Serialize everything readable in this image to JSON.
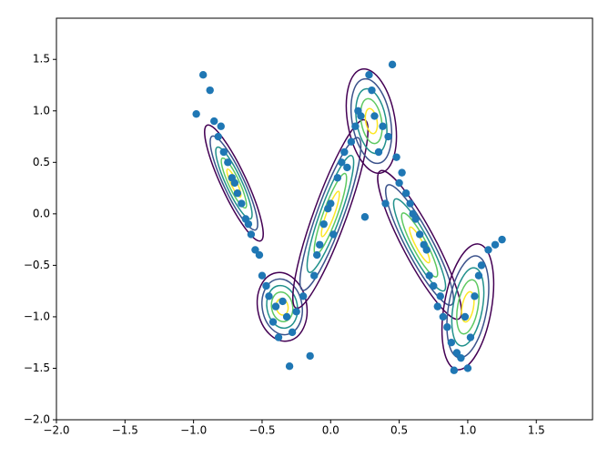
{
  "chart_data": {
    "type": "scatter",
    "color": "#1f77b4",
    "x": [
      -0.98,
      -0.93,
      -0.88,
      -0.85,
      -0.82,
      -0.8,
      -0.78,
      -0.75,
      -0.72,
      -0.7,
      -0.68,
      -0.65,
      -0.62,
      -0.6,
      -0.58,
      -0.55,
      -0.52,
      -0.5,
      -0.47,
      -0.45,
      -0.42,
      -0.4,
      -0.38,
      -0.35,
      -0.32,
      -0.3,
      -0.28,
      -0.25,
      -0.2,
      -0.15,
      -0.12,
      -0.1,
      -0.08,
      -0.05,
      -0.02,
      0.0,
      0.02,
      0.05,
      0.08,
      0.1,
      0.12,
      0.15,
      0.18,
      0.2,
      0.22,
      0.25,
      0.28,
      0.3,
      0.32,
      0.35,
      0.38,
      0.4,
      0.42,
      0.45,
      0.48,
      0.5,
      0.52,
      0.55,
      0.58,
      0.6,
      0.62,
      0.65,
      0.68,
      0.7,
      0.72,
      0.75,
      0.78,
      0.8,
      0.82,
      0.85,
      0.88,
      0.9,
      0.92,
      0.95,
      0.98,
      1.0,
      1.02,
      1.05,
      1.08,
      1.1,
      1.15,
      1.2,
      1.25
    ],
    "values": [
      0.97,
      1.35,
      1.2,
      0.9,
      0.75,
      0.85,
      0.6,
      0.5,
      0.35,
      0.3,
      0.2,
      0.1,
      -0.05,
      -0.1,
      -0.2,
      -0.35,
      -0.4,
      -0.6,
      -0.7,
      -0.8,
      -1.05,
      -0.9,
      -1.2,
      -0.85,
      -1.0,
      -1.48,
      -1.15,
      -0.95,
      -0.8,
      -1.38,
      -0.6,
      -0.4,
      -0.3,
      -0.1,
      0.05,
      0.1,
      -0.2,
      0.35,
      0.5,
      0.6,
      0.45,
      0.7,
      0.85,
      1.0,
      0.95,
      -0.03,
      1.35,
      1.2,
      0.95,
      0.6,
      0.85,
      0.1,
      0.75,
      1.45,
      0.55,
      0.3,
      0.4,
      0.2,
      0.1,
      0.0,
      -0.05,
      -0.2,
      -0.3,
      -0.35,
      -0.6,
      -0.7,
      -0.9,
      -0.8,
      -1.0,
      -1.1,
      -1.25,
      -1.52,
      -1.35,
      -1.4,
      -1.0,
      -1.5,
      -1.2,
      -0.8,
      -0.6,
      -0.5,
      -0.35,
      -0.3,
      -0.25
    ],
    "xlim": [
      -2,
      1.91
    ],
    "ylim": [
      -2,
      1.9
    ],
    "xticks": [
      {
        "value": -2,
        "label": "−2.0"
      },
      {
        "value": -1.5,
        "label": "−1.5"
      },
      {
        "value": -1,
        "label": "−1.0"
      },
      {
        "value": -0.5,
        "label": "−0.5"
      },
      {
        "value": 0,
        "label": "0.0"
      },
      {
        "value": 0.5,
        "label": "0.5"
      },
      {
        "value": 1,
        "label": "1.0"
      },
      {
        "value": 1.5,
        "label": "1.5"
      }
    ],
    "yticks": [
      {
        "value": -2,
        "label": "−2.0"
      },
      {
        "value": -1.5,
        "label": "−1.5"
      },
      {
        "value": -1,
        "label": "−1.0"
      },
      {
        "value": -0.5,
        "label": "−0.5"
      },
      {
        "value": 0,
        "label": "0.0"
      },
      {
        "value": 0.5,
        "label": "0.5"
      },
      {
        "value": 1,
        "label": "1.0"
      },
      {
        "value": 1.5,
        "label": "1.5"
      }
    ]
  }
}
